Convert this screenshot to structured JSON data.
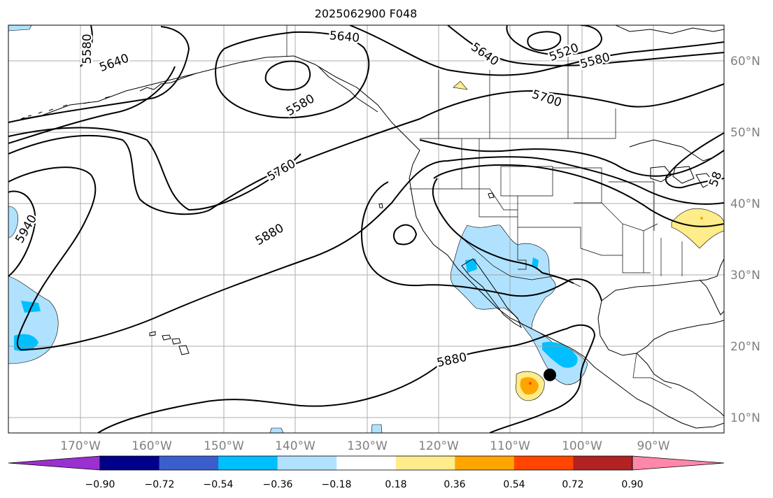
{
  "title": "2025062900 F048",
  "lon_labels": [
    "170°W",
    "160°W",
    "150°W",
    "140°W",
    "130°W",
    "120°W",
    "110°W",
    "100°W",
    "90°W"
  ],
  "lat_labels": [
    "60°N",
    "50°N",
    "40°N",
    "30°N",
    "20°N",
    "10°N"
  ],
  "contour_labels": {
    "c5580_a": "5580",
    "c5640_a": "5640",
    "c5640_b": "5640",
    "c5640_c": "5640",
    "c5520": "5520",
    "c5580_b": "5580",
    "c5580_c": "5580",
    "c5700": "5700",
    "c5760": "5760",
    "c5880_a": "5880",
    "c5880_b": "5880",
    "c5940": "5940",
    "c58_edge": "58"
  },
  "colorbar": {
    "ticks": [
      "−0.90",
      "−0.72",
      "−0.54",
      "−0.36",
      "−0.18",
      "0.18",
      "0.36",
      "0.54",
      "0.72",
      "0.90"
    ],
    "colors": [
      "#9b30d0",
      "#00008b",
      "#3a5fcd",
      "#00bfff",
      "#b0e2ff",
      "#ffffff",
      "#ffec8b",
      "#ffa500",
      "#ff4500",
      "#b22222",
      "#ff88aa"
    ]
  }
}
